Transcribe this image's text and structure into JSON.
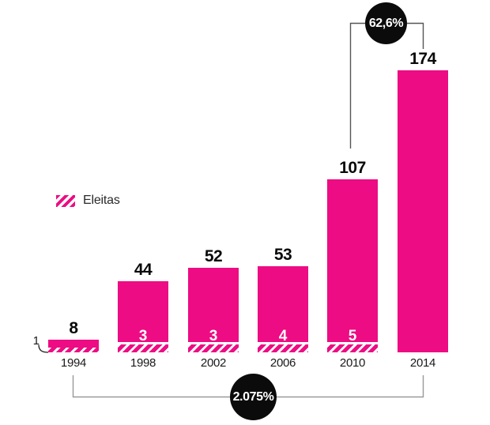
{
  "legend": {
    "label": "Eleitas"
  },
  "annotations": {
    "top_badge": "62,6%",
    "bottom_badge": "2.075%"
  },
  "chart_data": {
    "type": "bar",
    "categories": [
      "1994",
      "1998",
      "2002",
      "2006",
      "2010",
      "2014"
    ],
    "series": [
      {
        "name": "",
        "values": [
          8,
          44,
          52,
          53,
          107,
          174
        ]
      },
      {
        "name": "Eleitas",
        "values": [
          1,
          3,
          3,
          4,
          5,
          null
        ]
      }
    ],
    "title": "",
    "xlabel": "",
    "ylabel": "",
    "ylim": [
      0,
      180
    ],
    "grid": false,
    "legend_entries": [
      "Eleitas"
    ],
    "legend_position": "middle-left",
    "annotations": [
      {
        "text": "62,6%",
        "connects": [
          "2010",
          "2014"
        ],
        "position": "top"
      },
      {
        "text": "2.075%",
        "connects": [
          "1994",
          "2014"
        ],
        "position": "bottom"
      }
    ],
    "colors": {
      "bar": "#ED0C83",
      "badge": "#0B0B0B",
      "connector_top": "#555555",
      "connector_bottom": "#999999"
    }
  }
}
